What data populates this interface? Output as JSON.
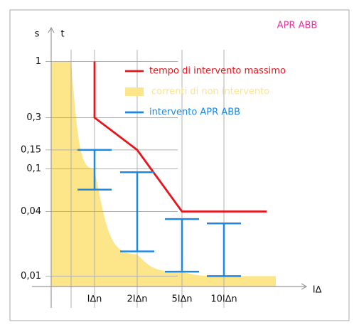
{
  "chart_data": {
    "type": "trip-curve",
    "title": "APR ABB",
    "y_label_left": "s",
    "y_label_right": "t",
    "x_label": "I∆",
    "categories": [
      null,
      "I∆n",
      "2I∆n",
      "5I∆n",
      "10I∆n"
    ],
    "log_y": true,
    "ylim": [
      0.008,
      1.8
    ],
    "yticks": [
      1,
      {
        "value": 0.3,
        "label": "0,3"
      },
      {
        "value": 0.15,
        "label": "0,15"
      },
      {
        "value": 0.1,
        "label": "0,1"
      },
      {
        "value": 0.04,
        "label": "0,04"
      },
      {
        "value": 0.01,
        "label": "0,01"
      }
    ],
    "grid": true,
    "series": [
      {
        "name": "tempo di intervento massimo",
        "kind": "line",
        "color": "#e8141c",
        "start_value": 1,
        "values": [
          null,
          0.3,
          0.15,
          0.04,
          0.04
        ]
      },
      {
        "name": "correnti di non intervento",
        "kind": "area",
        "color": "#fde58a",
        "values": [
          1,
          0.1,
          0.016,
          0.011,
          0.01
        ]
      },
      {
        "name": "intervento APR ABB",
        "kind": "interval",
        "color": "#1e88e5",
        "low": [
          null,
          0.064,
          0.017,
          0.011,
          0.01
        ],
        "high": [
          null,
          0.15,
          0.093,
          0.034,
          0.031
        ]
      }
    ]
  }
}
